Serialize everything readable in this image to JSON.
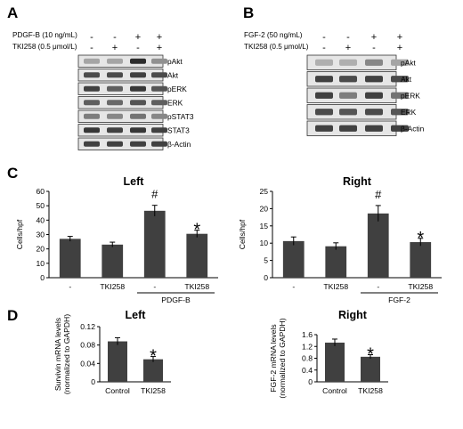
{
  "panels": {
    "A": {
      "letter": "A",
      "treatments": [
        {
          "label": "PDGF-B (10 ng/mL)",
          "signs": [
            "-",
            "-",
            "+",
            "+"
          ]
        },
        {
          "label": "TKI258 (0.5 μmol/L)",
          "signs": [
            "-",
            "+",
            "-",
            "+"
          ]
        }
      ],
      "blots": [
        {
          "name": "pAkt",
          "intensity": [
            0.35,
            0.35,
            0.95,
            0.45
          ]
        },
        {
          "name": "Akt",
          "intensity": [
            0.8,
            0.8,
            0.85,
            0.8
          ]
        },
        {
          "name": "pERK",
          "intensity": [
            0.85,
            0.7,
            0.9,
            0.75
          ]
        },
        {
          "name": "ERK",
          "intensity": [
            0.7,
            0.65,
            0.75,
            0.7
          ]
        },
        {
          "name": "pSTAT3",
          "intensity": [
            0.55,
            0.5,
            0.6,
            0.5
          ]
        },
        {
          "name": "STAT3",
          "intensity": [
            0.9,
            0.85,
            0.9,
            0.85
          ]
        },
        {
          "name": "β-Actin",
          "intensity": [
            0.85,
            0.85,
            0.85,
            0.85
          ]
        }
      ]
    },
    "B": {
      "letter": "B",
      "treatments": [
        {
          "label": "FGF-2 (50 ng/mL)",
          "signs": [
            "-",
            "-",
            "+",
            "+"
          ]
        },
        {
          "label": "TKI258 (0.5 μmol/L)",
          "signs": [
            "-",
            "+",
            "-",
            "+"
          ]
        }
      ],
      "blots": [
        {
          "name": "pAkt",
          "intensity": [
            0.3,
            0.3,
            0.5,
            0.35
          ]
        },
        {
          "name": "Akt",
          "intensity": [
            0.85,
            0.8,
            0.85,
            0.8
          ]
        },
        {
          "name": "pERK",
          "intensity": [
            0.85,
            0.55,
            0.85,
            0.6
          ]
        },
        {
          "name": "ERK",
          "intensity": [
            0.8,
            0.75,
            0.8,
            0.75
          ]
        },
        {
          "name": "β-Actin",
          "intensity": [
            0.85,
            0.85,
            0.85,
            0.85
          ]
        }
      ]
    },
    "C": {
      "letter": "C"
    },
    "D": {
      "letter": "D"
    }
  },
  "chart_data": [
    {
      "id": "C-left",
      "type": "bar",
      "title": "Left",
      "ylabel": "Cells/hpf",
      "xlabel": "",
      "categories": [
        "-",
        "TKI258",
        "-",
        "TKI258"
      ],
      "values": [
        27,
        23,
        46.5,
        30.5
      ],
      "errors": [
        1.7,
        1.7,
        3.8,
        2.5
      ],
      "annotations": [
        "",
        "",
        "#",
        "*"
      ],
      "ylim": [
        0,
        60
      ],
      "yticks": [
        0,
        10,
        20,
        30,
        40,
        50,
        60
      ],
      "group_label": "PDGF-B",
      "color": "#404040"
    },
    {
      "id": "C-right",
      "type": "bar",
      "title": "Right",
      "ylabel": "Cells/hpf",
      "xlabel": "",
      "categories": [
        "-",
        "TKI258",
        "-",
        "TKI258"
      ],
      "values": [
        10.6,
        9.1,
        18.6,
        10.3
      ],
      "errors": [
        1.2,
        1.0,
        2.3,
        1.1
      ],
      "annotations": [
        "",
        "",
        "#",
        "*"
      ],
      "ylim": [
        0,
        25
      ],
      "yticks": [
        0,
        5,
        10,
        15,
        20,
        25
      ],
      "group_label": "FGF-2",
      "color": "#404040"
    },
    {
      "id": "D-left",
      "type": "bar",
      "title": "Left",
      "ylabel": "Survivin mRNA levels (normalized to GAPDH)",
      "ylabel_lines": [
        "Survivin mRNA levels",
        "(normalized to GAPDH)"
      ],
      "xlabel": "",
      "categories": [
        "Control",
        "TKI258"
      ],
      "values": [
        0.088,
        0.049
      ],
      "errors": [
        0.008,
        0.006
      ],
      "annotations": [
        "",
        "*"
      ],
      "ylim": [
        0,
        0.12
      ],
      "yticks": [
        0,
        0.04,
        0.08,
        0.12
      ],
      "color": "#404040"
    },
    {
      "id": "D-right",
      "type": "bar",
      "title": "Right",
      "ylabel": "FGF-2 mRNA levels (normalized to GAPDH)",
      "ylabel_lines": [
        "FGF-2 mRNA levels",
        "(normalized to GAPDH)"
      ],
      "xlabel": "",
      "categories": [
        "Control",
        "TKI258"
      ],
      "values": [
        1.33,
        0.85
      ],
      "errors": [
        0.12,
        0.07
      ],
      "annotations": [
        "",
        "*"
      ],
      "ylim": [
        0,
        1.6
      ],
      "yticks": [
        0,
        0.4,
        0.8,
        1.2,
        1.6
      ],
      "color": "#404040"
    }
  ]
}
